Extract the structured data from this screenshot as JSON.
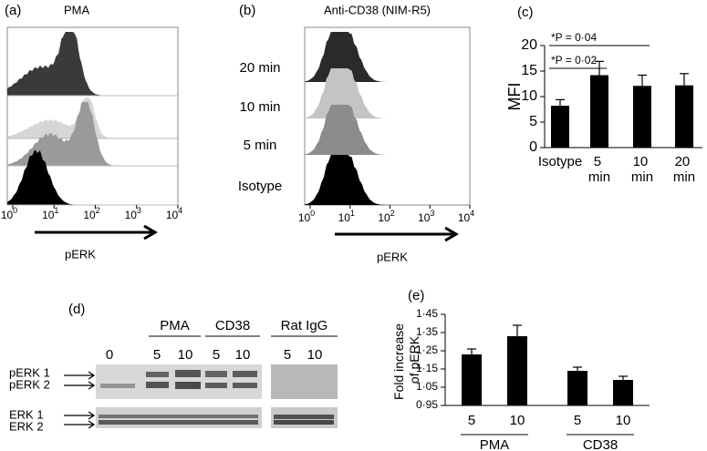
{
  "panels": {
    "a": {
      "letter": "(a)",
      "title": "PMA",
      "xlabel": "pERK",
      "xticks": [
        {
          "base": "10",
          "exp": "0"
        },
        {
          "base": "10",
          "exp": "1"
        },
        {
          "base": "10",
          "exp": "2"
        },
        {
          "base": "10",
          "exp": "3"
        },
        {
          "base": "10",
          "exp": "4"
        }
      ]
    },
    "b": {
      "letter": "(b)",
      "title": "Anti-CD38 (NIM-R5)",
      "rows": [
        "20 min",
        "10 min",
        "5 min",
        "Isotype"
      ],
      "xlabel": "pERK",
      "xticks": [
        {
          "base": "10",
          "exp": "0"
        },
        {
          "base": "10",
          "exp": "1"
        },
        {
          "base": "10",
          "exp": "2"
        },
        {
          "base": "10",
          "exp": "3"
        },
        {
          "base": "10",
          "exp": "4"
        }
      ]
    },
    "c": {
      "letter": "(c)"
    },
    "d": {
      "letter": "(d)",
      "groups": [
        "PMA",
        "CD38",
        "Rat IgG"
      ],
      "lanes": [
        "0",
        "5",
        "10",
        "5",
        "10",
        "5",
        "10"
      ],
      "bands": [
        "pERK 1",
        "pERK 2",
        "ERK 1",
        "ERK 2"
      ]
    },
    "e": {
      "letter": "(e)"
    }
  },
  "chart_data": [
    {
      "type": "bar",
      "ylabel": "MFI",
      "categories": [
        "Isotype",
        "5 min",
        "10 min",
        "20 min"
      ],
      "values": [
        8.2,
        14.2,
        12.1,
        12.2
      ],
      "errors": [
        1.2,
        2.7,
        2.1,
        2.3
      ],
      "color": "#000000",
      "ylim": [
        0,
        20
      ],
      "yticks": [
        0,
        5,
        10,
        15,
        20
      ],
      "annotations": [
        "*P = 0·04",
        "*P = 0·02"
      ]
    },
    {
      "type": "bar",
      "ylabel": "Fold increase of pERK",
      "categories": [
        "5",
        "10",
        "5",
        "10"
      ],
      "groups": [
        "PMA",
        "CD38"
      ],
      "values": [
        1.23,
        1.33,
        1.14,
        1.09
      ],
      "errors": [
        0.03,
        0.06,
        0.02,
        0.02
      ],
      "color": "#000000",
      "ylim": [
        0.95,
        1.45
      ],
      "yticks": [
        {
          "value": 0.95,
          "label": "0·95"
        },
        {
          "value": 1.05,
          "label": "1·05"
        },
        {
          "value": 1.15,
          "label": "1·15"
        },
        {
          "value": 1.25,
          "label": "1·25"
        },
        {
          "value": 1.35,
          "label": "1·35"
        },
        {
          "value": 1.45,
          "label": "1·45"
        }
      ]
    }
  ]
}
